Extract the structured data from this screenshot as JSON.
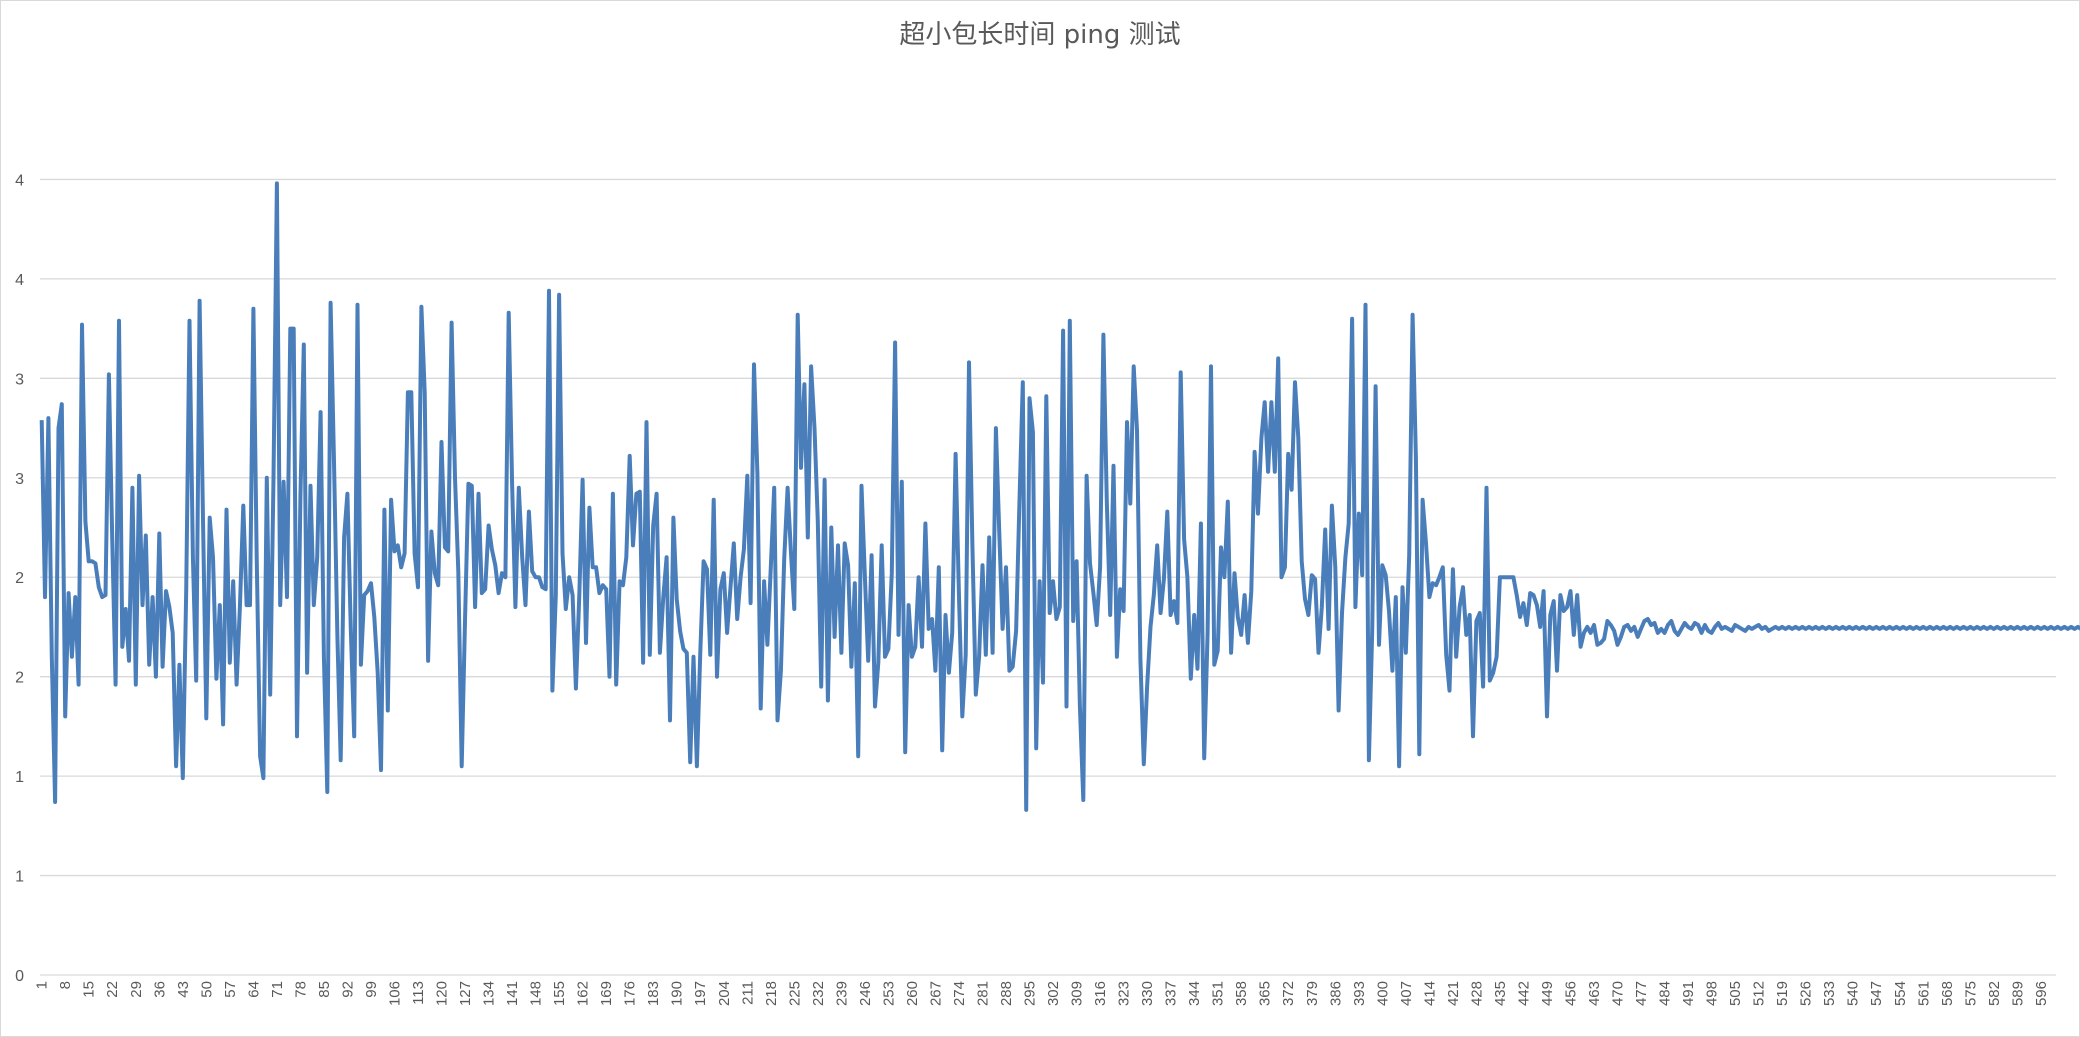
{
  "chart_data": {
    "type": "line",
    "title": "超小包长时间 ping 测试",
    "xlabel": "",
    "ylabel": "",
    "x_start": 1,
    "x_end": 600,
    "x_tick_step": 7,
    "ylim": [
      0,
      4.5
    ],
    "y_ticks": [
      0,
      0.5,
      1,
      1.5,
      2,
      2.5,
      3,
      3.5,
      4
    ],
    "y_tick_labels": [
      "0",
      "1",
      "1",
      "2",
      "2",
      "3",
      "3",
      "4",
      "4"
    ],
    "grid": true,
    "legend": "none",
    "series": [
      {
        "name": "ping",
        "color": "#4a7ebb",
        "values": [
          2.79,
          1.9,
          2.8,
          1.6,
          0.87,
          2.75,
          2.87,
          1.3,
          1.92,
          1.6,
          1.9,
          1.46,
          3.27,
          2.28,
          2.08,
          2.08,
          2.07,
          1.95,
          1.9,
          1.91,
          3.02,
          2.2,
          1.46,
          3.29,
          1.65,
          1.84,
          1.58,
          2.45,
          1.46,
          2.51,
          1.86,
          2.21,
          1.56,
          1.9,
          1.5,
          2.22,
          1.55,
          1.93,
          1.85,
          1.72,
          1.05,
          1.56,
          0.99,
          1.93,
          3.29,
          2.1,
          1.48,
          3.39,
          2.29,
          1.29,
          2.3,
          2.1,
          1.49,
          1.86,
          1.26,
          2.34,
          1.57,
          1.98,
          1.46,
          1.85,
          2.36,
          1.86,
          1.86,
          3.35,
          2.1,
          1.1,
          0.99,
          2.5,
          1.41,
          2.5,
          3.98,
          1.86,
          2.48,
          1.9,
          3.25,
          3.25,
          1.2,
          2.4,
          3.17,
          1.52,
          2.46,
          1.86,
          2.1,
          2.83,
          1.6,
          0.92,
          3.38,
          2.58,
          1.7,
          1.08,
          2.2,
          2.42,
          1.74,
          1.2,
          3.37,
          1.56,
          1.91,
          1.93,
          1.97,
          1.8,
          1.52,
          1.03,
          2.34,
          1.33,
          2.39,
          2.13,
          2.16,
          2.05,
          2.12,
          2.93,
          2.93,
          2.12,
          1.95,
          3.36,
          2.93,
          1.58,
          2.23,
          2.02,
          1.96,
          2.68,
          2.15,
          2.13,
          3.28,
          2.5,
          2.03,
          1.05,
          1.78,
          2.47,
          2.46,
          1.85,
          2.42,
          1.92,
          1.94,
          2.26,
          2.14,
          2.06,
          1.92,
          2.02,
          2.0,
          3.33,
          2.47,
          1.85,
          2.45,
          2.1,
          1.86,
          2.33,
          2.03,
          2.0,
          2.0,
          1.95,
          1.94,
          3.44,
          1.43,
          1.91,
          3.42,
          2.12,
          1.84,
          2.0,
          1.91,
          1.44,
          1.91,
          2.49,
          1.67,
          2.35,
          2.05,
          2.05,
          1.92,
          1.96,
          1.94,
          1.5,
          2.42,
          1.46,
          1.98,
          1.96,
          2.1,
          2.61,
          2.16,
          2.42,
          2.43,
          1.57,
          2.78,
          1.61,
          2.26,
          2.42,
          1.62,
          1.9,
          2.1,
          1.28,
          2.3,
          1.89,
          1.73,
          1.64,
          1.62,
          1.07,
          1.6,
          1.05,
          1.61,
          2.08,
          2.04,
          1.61,
          2.39,
          1.5,
          1.94,
          2.02,
          1.72,
          1.95,
          2.17,
          1.79,
          2.0,
          2.14,
          2.51,
          1.87,
          3.07,
          2.52,
          1.34,
          1.98,
          1.66,
          2.05,
          2.45,
          1.28,
          1.53,
          2.09,
          2.45,
          2.12,
          1.84,
          3.32,
          2.55,
          2.97,
          2.2,
          3.06,
          2.75,
          2.28,
          1.45,
          2.49,
          1.38,
          2.25,
          1.7,
          2.16,
          1.62,
          2.17,
          2.06,
          1.55,
          1.97,
          1.1,
          2.46,
          2.0,
          1.58,
          2.11,
          1.35,
          1.57,
          2.16,
          1.6,
          1.64,
          2.02,
          3.18,
          1.71,
          2.48,
          1.12,
          1.86,
          1.6,
          1.65,
          2.0,
          1.65,
          2.27,
          1.74,
          1.79,
          1.53,
          2.05,
          1.13,
          1.81,
          1.52,
          1.72,
          2.62,
          1.9,
          1.3,
          1.61,
          3.08,
          2.16,
          1.41,
          1.6,
          2.06,
          1.61,
          2.2,
          1.62,
          2.75,
          2.22,
          1.74,
          2.05,
          1.53,
          1.55,
          1.73,
          2.37,
          2.98,
          0.83,
          2.9,
          2.73,
          1.14,
          1.98,
          1.47,
          2.91,
          1.82,
          1.98,
          1.79,
          1.85,
          3.24,
          1.35,
          3.29,
          1.78,
          2.08,
          1.35,
          0.88,
          2.51,
          2.07,
          1.92,
          1.76,
          2.05,
          3.22,
          2.38,
          1.81,
          2.56,
          1.6,
          1.94,
          1.83,
          2.78,
          2.37,
          3.06,
          2.74,
          1.59,
          1.06,
          1.45,
          1.75,
          1.91,
          2.16,
          1.82,
          1.99,
          2.33,
          1.81,
          1.88,
          1.77,
          3.03,
          2.19,
          2.0,
          1.49,
          1.81,
          1.54,
          2.27,
          1.09,
          1.72,
          3.06,
          1.56,
          1.63,
          2.15,
          2.0,
          2.38,
          1.62,
          2.02,
          1.8,
          1.71,
          1.91,
          1.67,
          1.93,
          2.63,
          2.32,
          2.7,
          2.88,
          2.53,
          2.88,
          2.53,
          3.1,
          2.0,
          2.05,
          2.62,
          2.44,
          2.98,
          2.7,
          2.08,
          1.89,
          1.81,
          2.01,
          1.99,
          1.62,
          1.85,
          2.24,
          1.74,
          2.36,
          2.05,
          1.33,
          1.82,
          2.1,
          2.27,
          3.3,
          1.85,
          2.32,
          2.01,
          3.37,
          1.08,
          1.73,
          2.96,
          1.66,
          2.06,
          2.01,
          1.83,
          1.53,
          1.9,
          1.05,
          1.95,
          1.62,
          2.11,
          3.32,
          2.6,
          1.11,
          2.39,
          2.17,
          1.9,
          1.97,
          1.96,
          2.0,
          2.05,
          1.61,
          1.43,
          2.04,
          1.6,
          1.85,
          1.95,
          1.71,
          1.81,
          1.2,
          1.78,
          1.82,
          1.45,
          2.45,
          1.48,
          1.52,
          1.6,
          2.0,
          2.0,
          2.0,
          2.0,
          2.0,
          1.91,
          1.8,
          1.87,
          1.76,
          1.92,
          1.91,
          1.86,
          1.75,
          1.93,
          1.3,
          1.81,
          1.88,
          1.53,
          1.91,
          1.83,
          1.85,
          1.93,
          1.71,
          1.91,
          1.65,
          1.72,
          1.75,
          1.72,
          1.76,
          1.66,
          1.67,
          1.69,
          1.78,
          1.76,
          1.73,
          1.66,
          1.7,
          1.75,
          1.76,
          1.73,
          1.75,
          1.7,
          1.74,
          1.78,
          1.79,
          1.76,
          1.77,
          1.72,
          1.74,
          1.72,
          1.76,
          1.78,
          1.73,
          1.71,
          1.74,
          1.77,
          1.75,
          1.74,
          1.77,
          1.76,
          1.72,
          1.76,
          1.73,
          1.72,
          1.75,
          1.77,
          1.74,
          1.75,
          1.74,
          1.73,
          1.76,
          1.75,
          1.74,
          1.73,
          1.75,
          1.74,
          1.75,
          1.76,
          1.74,
          1.75,
          1.73,
          1.74,
          1.75,
          1.74,
          1.75,
          1.74,
          1.75,
          1.74,
          1.75,
          1.74,
          1.75,
          1.74,
          1.75,
          1.74,
          1.75,
          1.74,
          1.75,
          1.74,
          1.75,
          1.74,
          1.75,
          1.74,
          1.75,
          1.74,
          1.75,
          1.74,
          1.75,
          1.74,
          1.75,
          1.74,
          1.75,
          1.74,
          1.75,
          1.74,
          1.75,
          1.74,
          1.75,
          1.74,
          1.75,
          1.74,
          1.75,
          1.74,
          1.75,
          1.74,
          1.75,
          1.74,
          1.75,
          1.74,
          1.75,
          1.74,
          1.75,
          1.74,
          1.75,
          1.74,
          1.75,
          1.74,
          1.75,
          1.74,
          1.75,
          1.74,
          1.75,
          1.74,
          1.75,
          1.74,
          1.75,
          1.74,
          1.75,
          1.74,
          1.75,
          1.74,
          1.75,
          1.74,
          1.75,
          1.74,
          1.75,
          1.74,
          1.75,
          1.74,
          1.75,
          1.74,
          1.75,
          1.74,
          1.75,
          1.74,
          1.75,
          1.74,
          1.75,
          1.74,
          1.75,
          1.74,
          1.75,
          1.74,
          1.75,
          1.74,
          1.75,
          1.74,
          1.75,
          1.74,
          1.75,
          1.74,
          1.75,
          1.74,
          1.75,
          1.74,
          1.75,
          1.74,
          1.75,
          1.74,
          1.75,
          1.74,
          1.75,
          1.74,
          1.75,
          1.74,
          1.75,
          1.74,
          1.75
        ]
      }
    ]
  }
}
